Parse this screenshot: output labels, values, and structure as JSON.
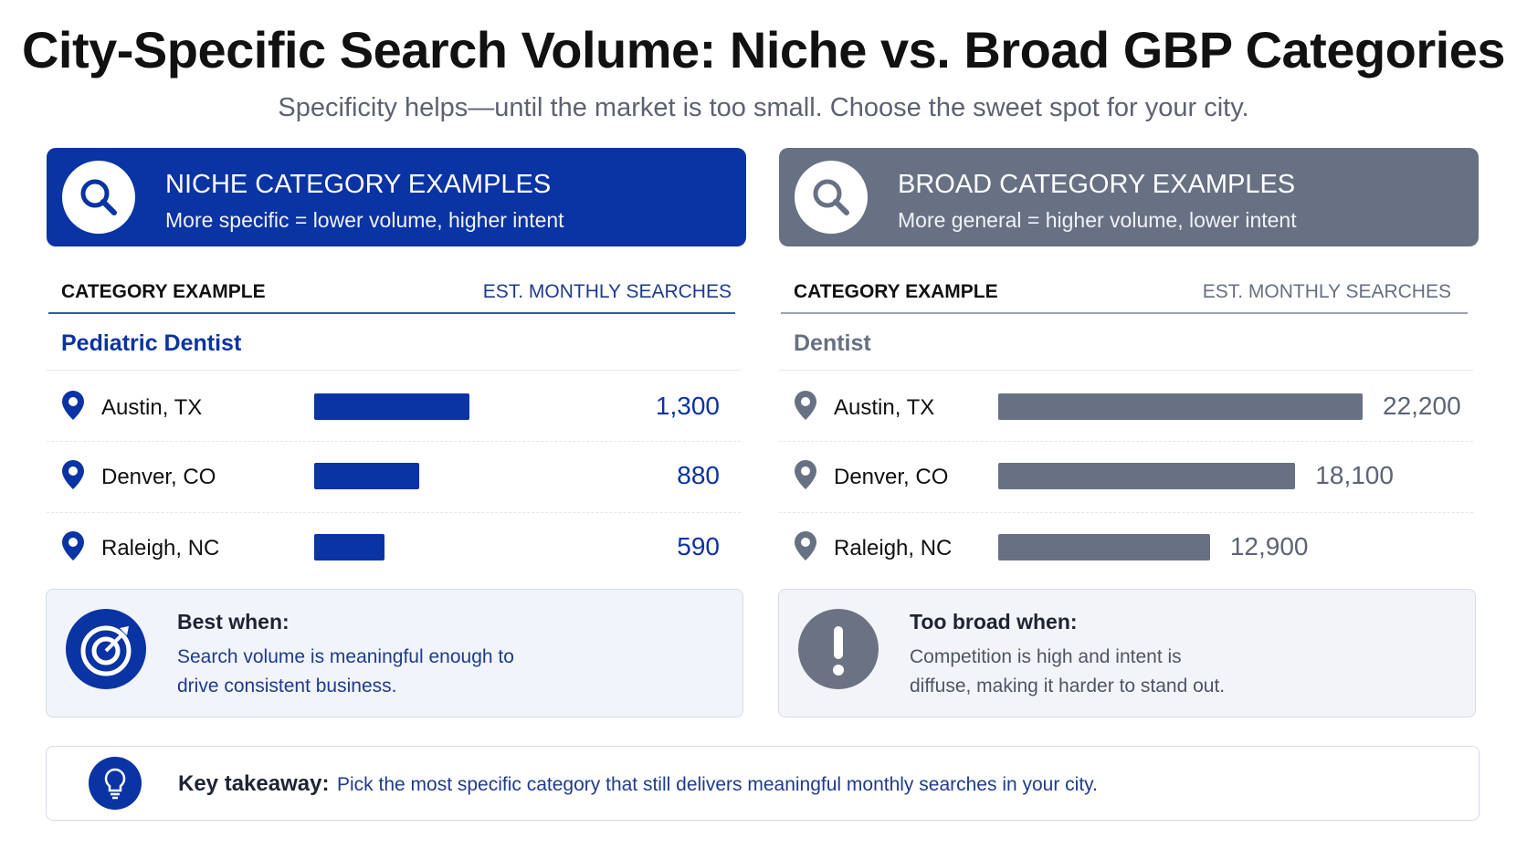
{
  "header": {
    "title": "City-Specific Search Volume: Niche vs. Broad GBP Categories",
    "subtitle": "Specificity helps—until the market is too small. Choose the sweet spot for your city."
  },
  "panels": [
    {
      "title": "NICHE CATEGORY EXAMPLES",
      "subtitle": "More specific = lower volume, higher intent",
      "column_left": "CATEGORY EXAMPLE",
      "column_right": "EST. MONTHLY SEARCHES",
      "category": "Pediatric Dentist",
      "color": "#0a33a3",
      "rows": [
        {
          "city": "Austin, TX",
          "value": 1300,
          "label": "1,300"
        },
        {
          "city": "Denver, CO",
          "value": 880,
          "label": "880"
        },
        {
          "city": "Raleigh, NC",
          "value": 590,
          "label": "590"
        }
      ],
      "note_title": "Best when:",
      "note_text": "Search volume is meaningful enough to drive consistent business."
    },
    {
      "title": "BROAD CATEGORY EXAMPLES",
      "subtitle": "More general = higher volume, lower intent",
      "column_left": "CATEGORY EXAMPLE",
      "column_right": "EST. MONTHLY SEARCHES",
      "category": "Dentist",
      "color": "#687183",
      "rows": [
        {
          "city": "Austin, TX",
          "value": 22200,
          "label": "22,200"
        },
        {
          "city": "Denver, CO",
          "value": 18100,
          "label": "18,100"
        },
        {
          "city": "Raleigh, NC",
          "value": 12900,
          "label": "12,900"
        }
      ],
      "note_title": "Too broad when:",
      "note_text": "Competition is high and intent is diffuse, making it harder to stand out."
    }
  ],
  "takeaway": {
    "label": "Key takeaway:",
    "text": "Pick the most specific category that still delivers meaningful monthly searches in your city."
  }
}
